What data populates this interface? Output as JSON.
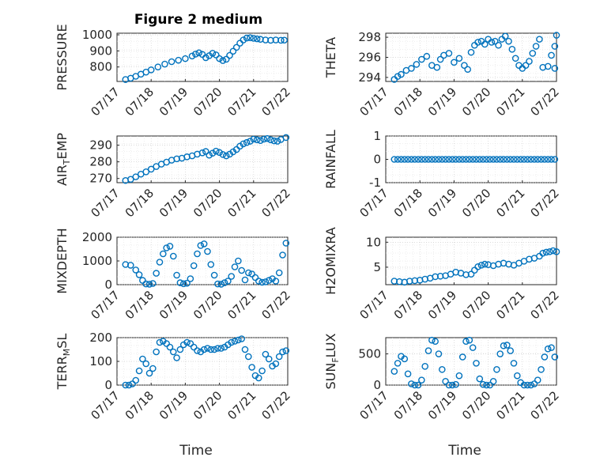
{
  "title": "Figure 2 medium",
  "colors": {
    "series": "#0072BD",
    "axis": "#262626",
    "grid": "#c8c8c8"
  },
  "xlabel": "Time",
  "x_ticks": [
    "07/17",
    "07/18",
    "07/19",
    "07/20",
    "07/21",
    "07/22"
  ],
  "chart_data": [
    {
      "type": "scatter",
      "panel": "top-left",
      "ylabel_parts": [
        "PRESSURE"
      ],
      "yticks": [
        "800",
        "900",
        "1000"
      ],
      "ylim": [
        710,
        1010
      ],
      "grid": true,
      "x": [
        0.25,
        0.4,
        0.55,
        0.7,
        0.85,
        1.0,
        1.2,
        1.4,
        1.6,
        1.8,
        2.0,
        2.2,
        2.3,
        2.4,
        2.5,
        2.6,
        2.7,
        2.8,
        2.9,
        3.0,
        3.1,
        3.2,
        3.3,
        3.4,
        3.5,
        3.6,
        3.7,
        3.8,
        3.9,
        4.0,
        4.1,
        4.2,
        4.35,
        4.5,
        4.65,
        4.8,
        4.9
      ],
      "y": [
        722,
        730,
        742,
        755,
        768,
        782,
        800,
        818,
        833,
        842,
        852,
        868,
        880,
        888,
        878,
        858,
        870,
        885,
        875,
        852,
        840,
        848,
        872,
        898,
        922,
        948,
        968,
        980,
        982,
        978,
        975,
        972,
        968,
        966,
        968,
        966,
        967
      ]
    },
    {
      "type": "scatter",
      "panel": "top-right",
      "ylabel_parts": [
        "THETA"
      ],
      "yticks": [
        "294",
        "296",
        "298"
      ],
      "ylim": [
        293.6,
        298.4
      ],
      "grid": true,
      "x": [
        0.25,
        0.35,
        0.45,
        0.6,
        0.75,
        0.9,
        1.05,
        1.2,
        1.35,
        1.5,
        1.6,
        1.7,
        1.85,
        2.0,
        2.15,
        2.3,
        2.4,
        2.5,
        2.6,
        2.7,
        2.8,
        2.9,
        3.0,
        3.1,
        3.2,
        3.3,
        3.4,
        3.5,
        3.6,
        3.7,
        3.8,
        3.9,
        4.0,
        4.1,
        4.2,
        4.3,
        4.4,
        4.5,
        4.6,
        4.75,
        4.85,
        4.95,
        5.0,
        4.95
      ],
      "y": [
        293.8,
        294.1,
        294.3,
        294.7,
        294.9,
        295.3,
        295.8,
        296.1,
        295.2,
        295.0,
        295.8,
        296.2,
        296.4,
        295.5,
        295.9,
        295.2,
        294.8,
        296.5,
        297.2,
        297.5,
        297.6,
        297.3,
        297.8,
        297.5,
        297.6,
        297.2,
        297.8,
        298.1,
        297.6,
        296.8,
        295.9,
        295.2,
        294.9,
        295.2,
        295.6,
        296.4,
        297.1,
        297.8,
        295.0,
        295.1,
        296.2,
        297.1,
        298.2,
        294.9
      ]
    },
    {
      "type": "scatter",
      "panel": "middle-left-1",
      "ylabel_parts": [
        "AIR",
        "T",
        "EMP"
      ],
      "yticks": [
        "270",
        "280",
        "290"
      ],
      "ylim": [
        267.5,
        295.5
      ],
      "grid": true,
      "x": [
        0.25,
        0.4,
        0.55,
        0.7,
        0.85,
        1.0,
        1.15,
        1.3,
        1.45,
        1.6,
        1.75,
        1.9,
        2.05,
        2.2,
        2.35,
        2.5,
        2.6,
        2.7,
        2.8,
        2.9,
        3.0,
        3.1,
        3.2,
        3.3,
        3.4,
        3.5,
        3.6,
        3.7,
        3.8,
        3.9,
        4.0,
        4.1,
        4.2,
        4.3,
        4.4,
        4.5,
        4.6,
        4.7,
        4.8,
        4.95
      ],
      "y": [
        268.8,
        269.5,
        271.0,
        272.6,
        274.0,
        275.6,
        277.2,
        278.6,
        279.8,
        281.0,
        281.8,
        282.2,
        283.0,
        283.6,
        284.6,
        285.4,
        286.2,
        284.0,
        285.2,
        286.4,
        285.6,
        284.4,
        283.6,
        284.6,
        286.0,
        287.4,
        289.4,
        290.8,
        291.6,
        292.4,
        293.6,
        293.2,
        292.8,
        293.6,
        294.0,
        293.2,
        292.6,
        292.4,
        293.4,
        294.6
      ]
    },
    {
      "type": "scatter",
      "panel": "middle-right-1",
      "ylabel_parts": [
        "RAINFALL"
      ],
      "yticks": [
        "-1",
        "0",
        "1"
      ],
      "ylim": [
        -1,
        1
      ],
      "grid": true,
      "x": [
        0.25,
        0.35,
        0.45,
        0.55,
        0.65,
        0.75,
        0.85,
        0.95,
        1.05,
        1.15,
        1.25,
        1.35,
        1.45,
        1.55,
        1.65,
        1.75,
        1.85,
        1.95,
        2.05,
        2.15,
        2.25,
        2.35,
        2.45,
        2.55,
        2.65,
        2.75,
        2.85,
        2.95,
        3.05,
        3.15,
        3.25,
        3.35,
        3.45,
        3.55,
        3.65,
        3.75,
        3.85,
        3.95,
        4.05,
        4.15,
        4.25,
        4.35,
        4.45,
        4.55,
        4.65,
        4.75,
        4.85,
        4.95
      ],
      "y": [
        0,
        0,
        0,
        0,
        0,
        0,
        0,
        0,
        0,
        0,
        0,
        0,
        0,
        0,
        0,
        0,
        0,
        0,
        0,
        0,
        0,
        0,
        0,
        0,
        0,
        0,
        0,
        0,
        0,
        0,
        0,
        0,
        0,
        0,
        0,
        0,
        0,
        0,
        0,
        0,
        0,
        0,
        0,
        0,
        0,
        0,
        0,
        0
      ]
    },
    {
      "type": "scatter",
      "panel": "middle-left-2",
      "ylabel_parts": [
        "MIXDEPTH"
      ],
      "yticks": [
        "0",
        "1000",
        "2000"
      ],
      "ylim": [
        0,
        2000
      ],
      "grid": true,
      "x": [
        0.25,
        0.4,
        0.55,
        0.65,
        0.75,
        0.85,
        0.95,
        1.05,
        1.15,
        1.25,
        1.35,
        1.45,
        1.55,
        1.65,
        1.75,
        1.85,
        1.95,
        2.05,
        2.15,
        2.25,
        2.35,
        2.45,
        2.55,
        2.65,
        2.75,
        2.85,
        2.95,
        3.05,
        3.15,
        3.25,
        3.35,
        3.45,
        3.55,
        3.65,
        3.75,
        3.85,
        3.95,
        4.05,
        4.15,
        4.25,
        4.35,
        4.45,
        4.55,
        4.65,
        4.75,
        4.85,
        4.95
      ],
      "y": [
        850,
        820,
        620,
        420,
        180,
        30,
        20,
        50,
        480,
        950,
        1300,
        1550,
        1620,
        1200,
        400,
        80,
        40,
        60,
        250,
        800,
        1300,
        1650,
        1720,
        1400,
        850,
        400,
        30,
        20,
        80,
        150,
        350,
        750,
        1000,
        600,
        200,
        500,
        450,
        300,
        150,
        100,
        120,
        180,
        250,
        150,
        500,
        1250,
        1750
      ]
    },
    {
      "type": "scatter",
      "panel": "middle-right-2",
      "ylabel_parts": [
        "H2OMIXRA"
      ],
      "yticks": [
        "5",
        "10"
      ],
      "ylim": [
        1.5,
        11
      ],
      "grid": true,
      "x": [
        0.25,
        0.4,
        0.55,
        0.7,
        0.85,
        1.0,
        1.15,
        1.3,
        1.45,
        1.6,
        1.75,
        1.9,
        2.05,
        2.2,
        2.35,
        2.5,
        2.6,
        2.7,
        2.8,
        2.9,
        3.0,
        3.15,
        3.3,
        3.45,
        3.6,
        3.75,
        3.9,
        4.05,
        4.2,
        4.35,
        4.5,
        4.6,
        4.7,
        4.8,
        4.9,
        5.0
      ],
      "y": [
        2.2,
        2.1,
        2.0,
        2.2,
        2.3,
        2.4,
        2.6,
        2.8,
        3.1,
        3.2,
        3.3,
        3.6,
        4.0,
        3.8,
        3.5,
        3.6,
        4.4,
        5.1,
        5.4,
        5.6,
        5.5,
        5.3,
        5.6,
        5.8,
        5.6,
        5.4,
        5.8,
        6.2,
        6.6,
        6.8,
        7.2,
        7.8,
        8.0,
        8.1,
        8.3,
        8.1
      ]
    },
    {
      "type": "scatter",
      "panel": "bottom-left",
      "ylabel_parts": [
        "TERR",
        "M",
        "SL"
      ],
      "yticks": [
        "0",
        "100",
        "200"
      ],
      "ylim": [
        0,
        200
      ],
      "grid": true,
      "x": [
        0.25,
        0.35,
        0.45,
        0.55,
        0.65,
        0.75,
        0.85,
        0.95,
        1.05,
        1.15,
        1.25,
        1.35,
        1.45,
        1.55,
        1.65,
        1.75,
        1.85,
        1.95,
        2.05,
        2.15,
        2.25,
        2.35,
        2.45,
        2.55,
        2.65,
        2.75,
        2.85,
        2.95,
        3.05,
        3.15,
        3.25,
        3.35,
        3.45,
        3.55,
        3.65,
        3.75,
        3.85,
        3.95,
        4.05,
        4.15,
        4.25,
        4.35,
        4.45,
        4.55,
        4.65,
        4.75,
        4.85,
        4.95
      ],
      "y": [
        0,
        0,
        5,
        20,
        60,
        110,
        90,
        50,
        70,
        140,
        180,
        185,
        175,
        160,
        140,
        115,
        150,
        170,
        180,
        175,
        160,
        145,
        140,
        150,
        155,
        150,
        150,
        155,
        155,
        160,
        170,
        180,
        185,
        190,
        195,
        150,
        120,
        75,
        40,
        30,
        60,
        130,
        110,
        80,
        90,
        120,
        140,
        145
      ]
    },
    {
      "type": "scatter",
      "panel": "bottom-right",
      "ylabel_parts": [
        "SUN",
        "F",
        "LUX"
      ],
      "yticks": [
        "0",
        "500"
      ],
      "ylim": [
        0,
        760
      ],
      "grid": true,
      "x": [
        0.25,
        0.35,
        0.45,
        0.55,
        0.65,
        0.75,
        0.85,
        0.95,
        1.05,
        1.15,
        1.25,
        1.35,
        1.45,
        1.55,
        1.65,
        1.75,
        1.85,
        1.95,
        2.05,
        2.15,
        2.25,
        2.35,
        2.45,
        2.55,
        2.65,
        2.75,
        2.85,
        2.95,
        3.05,
        3.15,
        3.25,
        3.35,
        3.45,
        3.55,
        3.65,
        3.75,
        3.85,
        3.95,
        4.05,
        4.15,
        4.25,
        4.35,
        4.45,
        4.55,
        4.65,
        4.75,
        4.85,
        4.95
      ],
      "y": [
        220,
        350,
        460,
        420,
        180,
        20,
        0,
        0,
        80,
        300,
        550,
        720,
        700,
        500,
        250,
        60,
        0,
        0,
        10,
        150,
        450,
        700,
        720,
        600,
        350,
        100,
        10,
        0,
        0,
        60,
        250,
        500,
        630,
        640,
        550,
        350,
        150,
        40,
        0,
        0,
        0,
        20,
        80,
        250,
        450,
        580,
        600,
        450
      ]
    }
  ]
}
